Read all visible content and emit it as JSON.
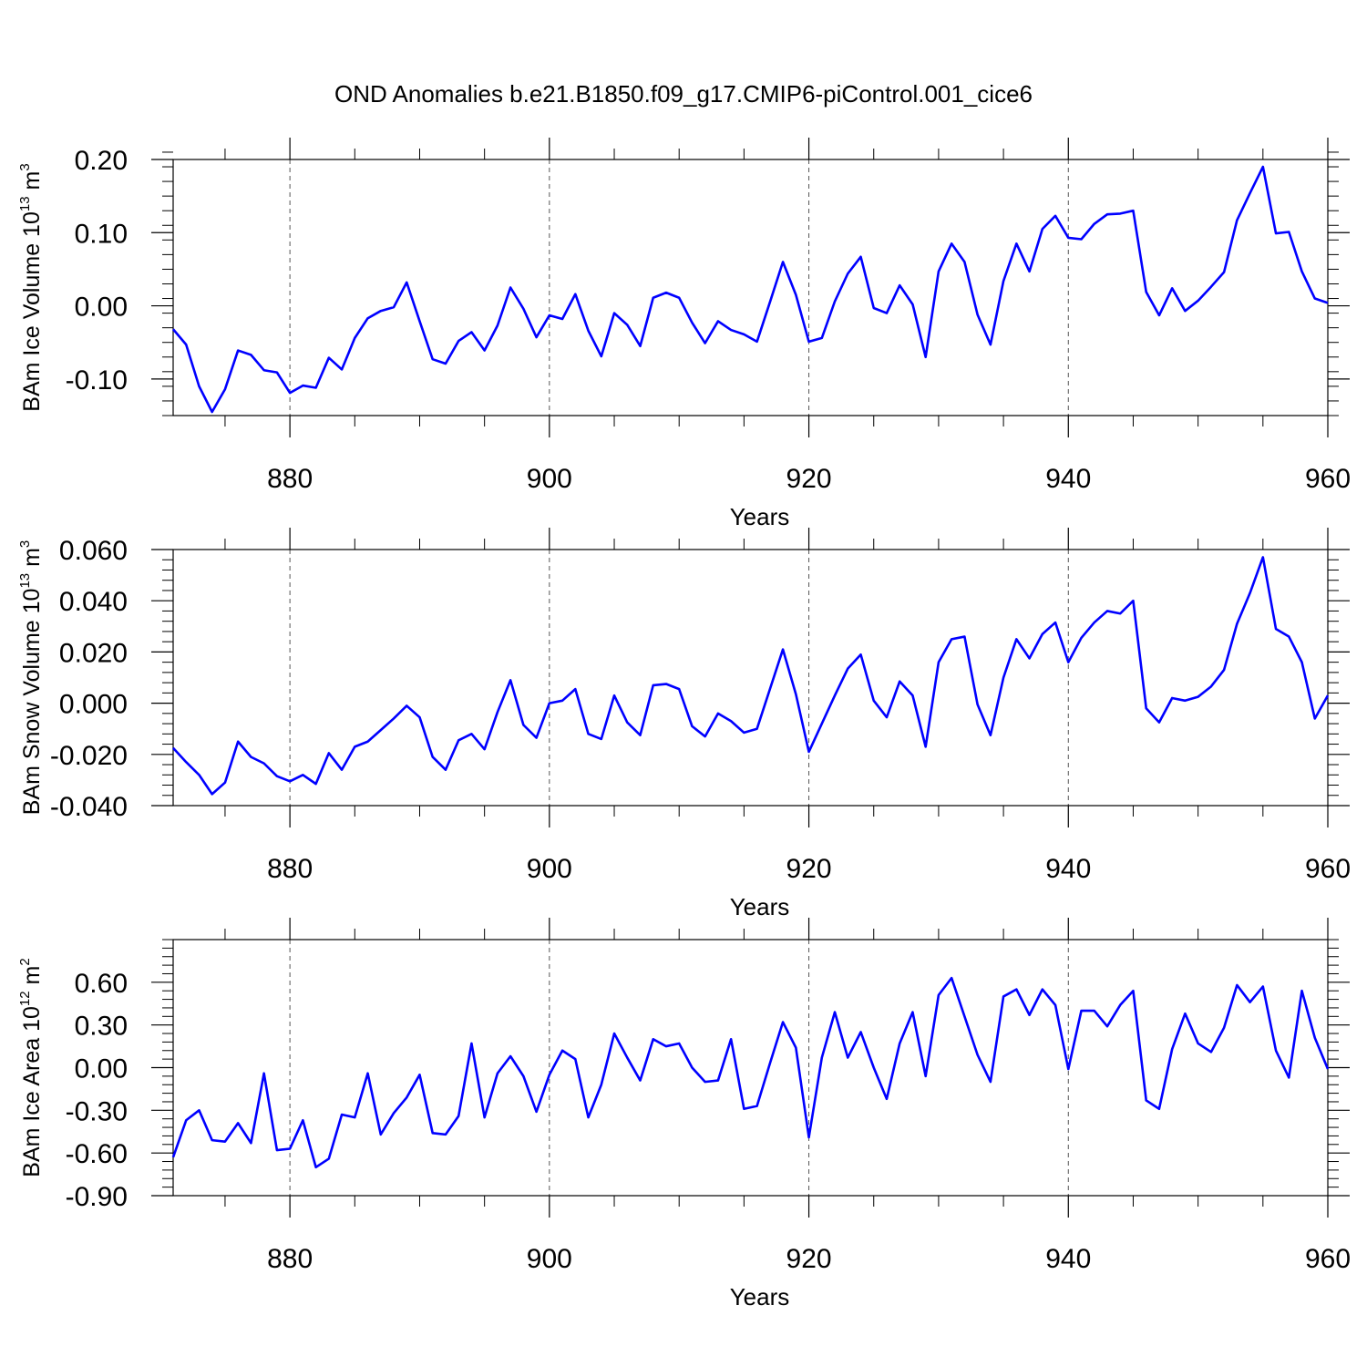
{
  "title": "OND Anomalies b.e21.B1850.f09_g17.CMIP6-piControl.001_cice6",
  "colors": {
    "line": "#0000ff",
    "axis": "#000000",
    "grid": "#555555"
  },
  "chart_data": [
    {
      "type": "line",
      "xlabel": "Years",
      "ylabel": {
        "main": "BAm Ice Volume 10",
        "sup1": "13",
        "unit": " m",
        "sup2": "3"
      },
      "xlim": [
        871,
        960
      ],
      "ylim": [
        -0.15,
        0.2
      ],
      "xticks": [
        880,
        900,
        920,
        940,
        960
      ],
      "xtick_labels": [
        "880",
        "900",
        "920",
        "940",
        "960"
      ],
      "yticks": [
        -0.1,
        0.0,
        0.1,
        0.2
      ],
      "ytick_labels": [
        "-0.10",
        "0.00",
        "0.10",
        "0.20"
      ],
      "grid": "vertical-dashed",
      "x_start": 871,
      "series": [
        {
          "values": [
            -0.032,
            -0.053,
            -0.11,
            -0.145,
            -0.114,
            -0.061,
            -0.067,
            -0.088,
            -0.091,
            -0.119,
            -0.109,
            -0.112,
            -0.071,
            -0.087,
            -0.044,
            -0.017,
            -0.007,
            -0.002,
            0.032,
            -0.021,
            -0.073,
            -0.079,
            -0.048,
            -0.036,
            -0.061,
            -0.027,
            0.025,
            -0.004,
            -0.043,
            -0.013,
            -0.018,
            0.016,
            -0.034,
            -0.069,
            -0.01,
            -0.026,
            -0.055,
            0.011,
            0.018,
            0.011,
            -0.023,
            -0.051,
            -0.021,
            -0.033,
            -0.039,
            -0.049,
            0.005,
            0.06,
            0.015,
            -0.049,
            -0.044,
            0.006,
            0.044,
            0.067,
            -0.003,
            -0.01,
            0.028,
            0.002,
            -0.07,
            0.047,
            0.085,
            0.06,
            -0.012,
            -0.053,
            0.034,
            0.085,
            0.047,
            0.105,
            0.123,
            0.093,
            0.091,
            0.112,
            0.125,
            0.126,
            0.13,
            0.019,
            -0.013,
            0.024,
            -0.007,
            0.007,
            0.026,
            0.046,
            0.117,
            0.154,
            0.19,
            0.099,
            0.101,
            0.047,
            0.01,
            0.004
          ]
        }
      ]
    },
    {
      "type": "line",
      "xlabel": "Years",
      "ylabel": {
        "main": "BAm Snow Volume 10",
        "sup1": "13",
        "unit": " m",
        "sup2": "3"
      },
      "xlim": [
        871,
        960
      ],
      "ylim": [
        -0.04,
        0.06
      ],
      "xticks": [
        880,
        900,
        920,
        940,
        960
      ],
      "xtick_labels": [
        "880",
        "900",
        "920",
        "940",
        "960"
      ],
      "yticks": [
        -0.04,
        -0.02,
        0.0,
        0.02,
        0.04,
        0.06
      ],
      "ytick_labels": [
        "-0.040",
        "-0.020",
        "0.000",
        "0.020",
        "0.040",
        "0.060"
      ],
      "grid": "vertical-dashed",
      "x_start": 871,
      "series": [
        {
          "values": [
            -0.0175,
            -0.023,
            -0.028,
            -0.0355,
            -0.031,
            -0.015,
            -0.021,
            -0.0235,
            -0.0285,
            -0.0305,
            -0.028,
            -0.0315,
            -0.0195,
            -0.026,
            -0.017,
            -0.015,
            -0.0105,
            -0.006,
            -0.001,
            -0.0055,
            -0.021,
            -0.026,
            -0.0145,
            -0.012,
            -0.018,
            -0.0035,
            0.009,
            -0.0085,
            -0.0135,
            0.0,
            0.001,
            0.0055,
            -0.012,
            -0.014,
            0.003,
            -0.0075,
            -0.0125,
            0.007,
            0.0075,
            0.0055,
            -0.009,
            -0.013,
            -0.004,
            -0.007,
            -0.0115,
            -0.01,
            0.0055,
            0.021,
            0.0035,
            -0.019,
            -0.008,
            0.003,
            0.0135,
            0.019,
            0.001,
            -0.0055,
            0.0085,
            0.003,
            -0.017,
            0.016,
            0.025,
            0.026,
            -0.0005,
            -0.0125,
            0.01,
            0.025,
            0.0175,
            0.027,
            0.0315,
            0.016,
            0.0255,
            0.0315,
            0.036,
            0.035,
            0.04,
            -0.002,
            -0.0075,
            0.002,
            0.001,
            0.0025,
            0.0065,
            0.013,
            0.031,
            0.043,
            0.057,
            0.029,
            0.026,
            0.016,
            -0.006,
            0.003
          ]
        }
      ]
    },
    {
      "type": "line",
      "xlabel": "Years",
      "ylabel": {
        "main": "BAm Ice Area 10",
        "sup1": "12",
        "unit": " m",
        "sup2": "2"
      },
      "xlim": [
        871,
        960
      ],
      "ylim": [
        -0.9,
        0.9
      ],
      "xticks": [
        880,
        900,
        920,
        940,
        960
      ],
      "xtick_labels": [
        "880",
        "900",
        "920",
        "940",
        "960"
      ],
      "yticks": [
        -0.9,
        -0.6,
        -0.3,
        0.0,
        0.3,
        0.6
      ],
      "ytick_labels": [
        "-0.90",
        "-0.60",
        "-0.30",
        "0.00",
        "0.30",
        "0.60"
      ],
      "grid": "vertical-dashed",
      "x_start": 871,
      "series": [
        {
          "values": [
            -0.63,
            -0.37,
            -0.3,
            -0.51,
            -0.52,
            -0.39,
            -0.53,
            -0.04,
            -0.58,
            -0.57,
            -0.37,
            -0.7,
            -0.64,
            -0.33,
            -0.35,
            -0.04,
            -0.47,
            -0.32,
            -0.21,
            -0.05,
            -0.46,
            -0.47,
            -0.34,
            0.17,
            -0.35,
            -0.04,
            0.08,
            -0.06,
            -0.31,
            -0.05,
            0.12,
            0.06,
            -0.35,
            -0.12,
            0.24,
            0.07,
            -0.09,
            0.2,
            0.15,
            0.17,
            0.0,
            -0.1,
            -0.09,
            0.2,
            -0.29,
            -0.27,
            0.03,
            0.32,
            0.14,
            -0.49,
            0.07,
            0.39,
            0.07,
            0.25,
            0.0,
            -0.22,
            0.17,
            0.39,
            -0.06,
            0.51,
            0.63,
            0.36,
            0.09,
            -0.1,
            0.5,
            0.55,
            0.37,
            0.55,
            0.44,
            -0.01,
            0.4,
            0.4,
            0.29,
            0.44,
            0.54,
            -0.23,
            -0.29,
            0.13,
            0.38,
            0.17,
            0.11,
            0.28,
            0.58,
            0.46,
            0.57,
            0.12,
            -0.07,
            0.54,
            0.21,
            -0.01
          ]
        }
      ]
    }
  ]
}
